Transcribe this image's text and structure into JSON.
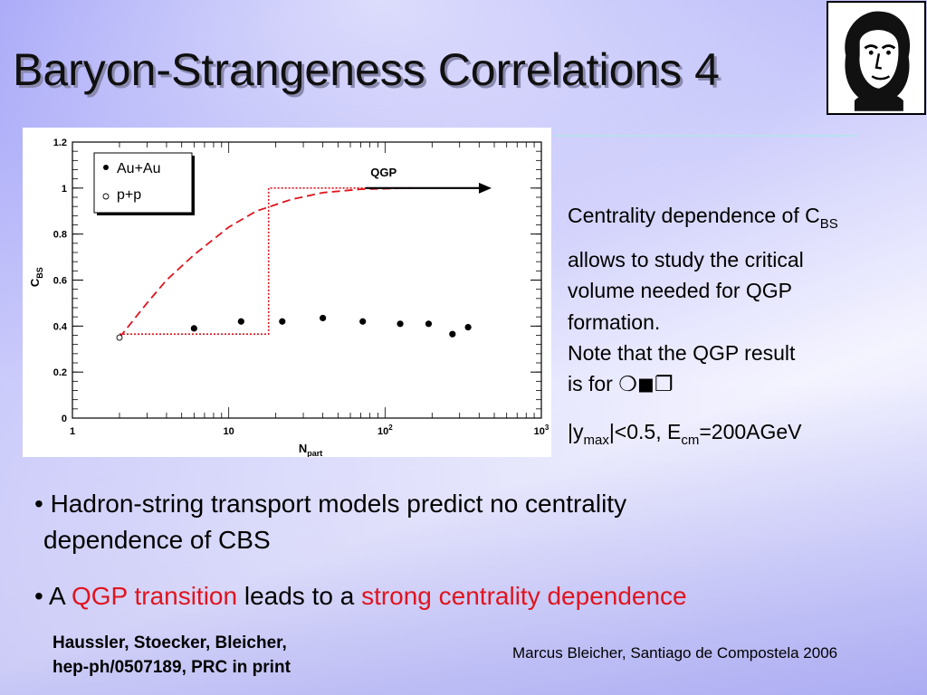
{
  "slide": {
    "title": "Baryon-Strangeness Correlations 4"
  },
  "side_text": {
    "line1_prefix": "Centrality dependence of C",
    "line1_sub": "BS",
    "line2": "allows to study the critical",
    "line3": "volume needed for QGP",
    "line4": "formation.",
    "line5": "Note that the QGP result",
    "line6_prefix": "is for ",
    "line6_symbols": "❍◼❐",
    "line7_prefix": "|y",
    "line7_sub1": "max",
    "line7_mid": "|<0.5, E",
    "line7_sub2": "cm",
    "line7_suffix": "=200AGeV"
  },
  "bullets": {
    "b1_line1": "• Hadron-string transport models predict no centrality",
    "b1_line2": "dependence of CBS",
    "b2_part1": "• A ",
    "b2_red1": "QGP transition",
    "b2_part2": " leads to a ",
    "b2_red2": "strong centrality dependence"
  },
  "reference": {
    "line1": "Haussler, Stoecker, Bleicher,",
    "line2": "hep-ph/0507189, PRC in print"
  },
  "footer": {
    "text": "Marcus Bleicher, Santiago de Compostela 2006"
  },
  "colors": {
    "accent_red": "#e0141e",
    "title_shadow": "#8a8ab0"
  },
  "chart_data": {
    "type": "scatter",
    "x_scale": "log",
    "xlim": [
      1,
      1000
    ],
    "ylim": [
      0,
      1.2
    ],
    "xlabel": "N",
    "xlabel_sub": "part",
    "ylabel": "C",
    "ylabel_sub": "BS",
    "x_ticks": [
      {
        "value": 1,
        "label": "1"
      },
      {
        "value": 10,
        "label": "10"
      },
      {
        "value": 100,
        "label": "10",
        "sup": "2"
      },
      {
        "value": 1000,
        "label": "10",
        "sup": "3"
      }
    ],
    "y_ticks": [
      {
        "value": 0,
        "label": "0"
      },
      {
        "value": 0.2,
        "label": "0.2"
      },
      {
        "value": 0.4,
        "label": "0.4"
      },
      {
        "value": 0.6,
        "label": "0.6"
      },
      {
        "value": 0.8,
        "label": "0.8"
      },
      {
        "value": 1,
        "label": "1"
      },
      {
        "value": 1.2,
        "label": "1.2"
      }
    ],
    "legend": {
      "placement": "top-left",
      "entries": [
        {
          "marker": "filled-circle",
          "label": "Au+Au"
        },
        {
          "marker": "open-circle",
          "label": "p+p"
        }
      ]
    },
    "series": [
      {
        "name": "Au+Au",
        "marker": "filled-circle",
        "points": [
          {
            "x": 6,
            "y": 0.39
          },
          {
            "x": 12,
            "y": 0.42
          },
          {
            "x": 22,
            "y": 0.42
          },
          {
            "x": 40,
            "y": 0.435
          },
          {
            "x": 72,
            "y": 0.42
          },
          {
            "x": 125,
            "y": 0.41
          },
          {
            "x": 190,
            "y": 0.41
          },
          {
            "x": 270,
            "y": 0.365
          },
          {
            "x": 340,
            "y": 0.395
          }
        ]
      },
      {
        "name": "p+p",
        "marker": "open-circle",
        "points": [
          {
            "x": 2,
            "y": 0.35
          }
        ]
      },
      {
        "style": "dashed",
        "color": "#e0141e",
        "points": [
          {
            "x": 2,
            "y": 0.35
          },
          {
            "x": 3,
            "y": 0.5
          },
          {
            "x": 4,
            "y": 0.6
          },
          {
            "x": 6,
            "y": 0.71
          },
          {
            "x": 10,
            "y": 0.83
          },
          {
            "x": 15,
            "y": 0.9
          },
          {
            "x": 25,
            "y": 0.95
          },
          {
            "x": 40,
            "y": 0.98
          },
          {
            "x": 70,
            "y": 0.995
          },
          {
            "x": 150,
            "y": 1.0
          }
        ]
      },
      {
        "style": "dotted-step",
        "color": "#e0141e",
        "points": [
          {
            "x": 2,
            "y": 0.365
          },
          {
            "x": 18,
            "y": 0.365
          },
          {
            "x": 18,
            "y": 1.0
          },
          {
            "x": 450,
            "y": 1.0
          }
        ]
      }
    ],
    "annotations": [
      {
        "text": "QGP",
        "arrow_from_x": 75,
        "arrow_to_x": 480,
        "y": 1.0
      }
    ]
  }
}
